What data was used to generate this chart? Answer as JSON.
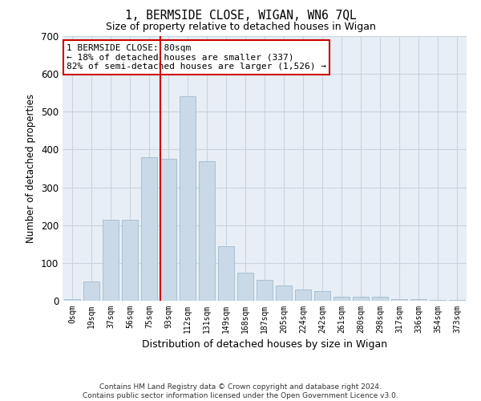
{
  "title1": "1, BERMSIDE CLOSE, WIGAN, WN6 7QL",
  "title2": "Size of property relative to detached houses in Wigan",
  "xlabel": "Distribution of detached houses by size in Wigan",
  "ylabel": "Number of detached properties",
  "categories": [
    "0sqm",
    "19sqm",
    "37sqm",
    "56sqm",
    "75sqm",
    "93sqm",
    "112sqm",
    "131sqm",
    "149sqm",
    "168sqm",
    "187sqm",
    "205sqm",
    "224sqm",
    "242sqm",
    "261sqm",
    "280sqm",
    "298sqm",
    "317sqm",
    "336sqm",
    "354sqm",
    "373sqm"
  ],
  "values": [
    5,
    50,
    215,
    215,
    380,
    375,
    540,
    370,
    145,
    75,
    55,
    40,
    30,
    25,
    10,
    10,
    10,
    5,
    5,
    2,
    2
  ],
  "bar_color": "#c9d9e8",
  "bar_edge_color": "#a0bbcc",
  "grid_color": "#c8d4e0",
  "background_color": "#e8eef5",
  "annotation_text": "1 BERMSIDE CLOSE: 80sqm\n← 18% of detached houses are smaller (337)\n82% of semi-detached houses are larger (1,526) →",
  "annotation_box_color": "#ffffff",
  "annotation_box_edge": "#cc0000",
  "red_line_x": 4.58,
  "ylim": [
    0,
    700
  ],
  "yticks": [
    0,
    100,
    200,
    300,
    400,
    500,
    600,
    700
  ],
  "footer1": "Contains HM Land Registry data © Crown copyright and database right 2024.",
  "footer2": "Contains public sector information licensed under the Open Government Licence v3.0."
}
